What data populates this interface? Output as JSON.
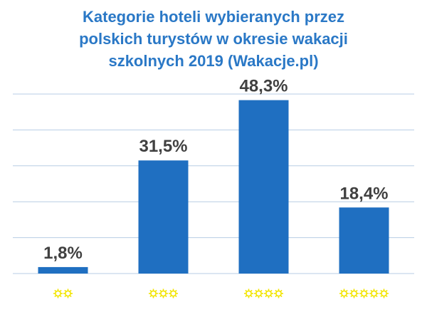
{
  "chart_data": {
    "type": "bar",
    "title_lines": [
      "Kategorie hoteli wybieranych przez",
      "polskich turystów w okresie wakacji",
      "szkolnych 2019 (Wakacje.pl)"
    ],
    "categories": [
      "2 stars",
      "3 stars",
      "4 stars",
      "5 stars"
    ],
    "star_counts": [
      2,
      3,
      4,
      5
    ],
    "values": [
      1.8,
      31.5,
      48.3,
      18.4
    ],
    "value_labels": [
      "1,8%",
      "31,5%",
      "48,3%",
      "18,4%"
    ],
    "ylim": [
      0,
      50
    ],
    "grid": true,
    "colors": {
      "bar": "#1f6fc1",
      "title": "#2a78c6",
      "grid": "#b7cde4",
      "label": "#404040",
      "star": "#f2e500"
    }
  }
}
